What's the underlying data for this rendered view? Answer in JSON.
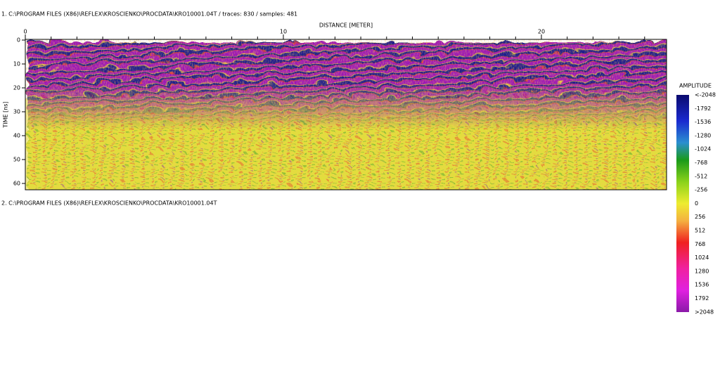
{
  "header": {
    "file_1": "1. C:\\PROGRAM FILES (X86)\\REFLEX\\KROSCIENKO\\PROCDATA\\KRO10001.04T / traces: 830 / samples: 481",
    "file_2": "2. C:\\PROGRAM FILES (X86)\\REFLEX\\KROSCIENKO\\PROCDATA\\KRO10001.04T"
  },
  "profile": {
    "x_axis_title": "DISTANCE [METER]",
    "x_ticks": [
      "0",
      "10",
      "20"
    ],
    "y_axis_title": "TIME [ns]",
    "y_ticks": [
      "0",
      "10",
      "20",
      "30",
      "40",
      "50",
      "60"
    ]
  },
  "colorbar": {
    "title": "AMPLITUDE",
    "labels": [
      "<-2048",
      "-1792",
      "-1536",
      "-1280",
      "-1024",
      "-768",
      "-512",
      "-256",
      "0",
      "256",
      "512",
      "768",
      "1024",
      "1280",
      "1536",
      "1792",
      ">2048"
    ]
  }
}
